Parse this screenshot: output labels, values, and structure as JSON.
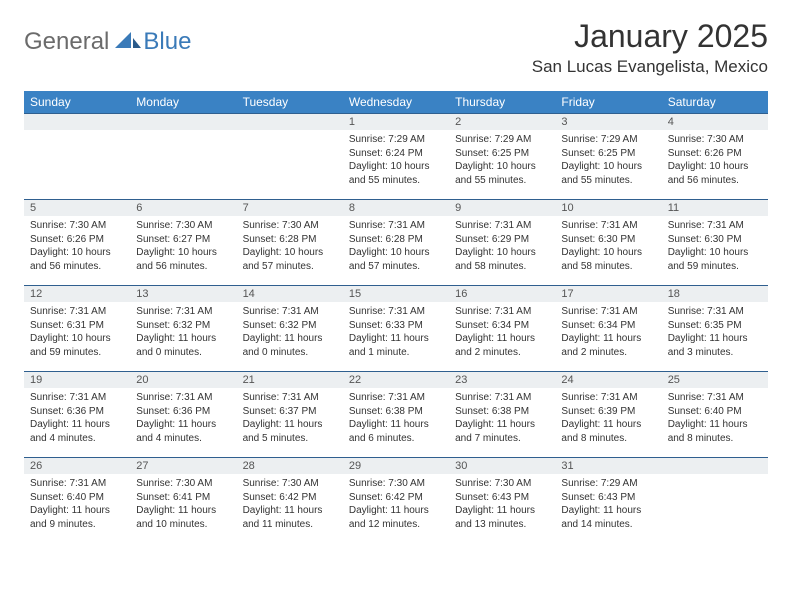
{
  "brand": {
    "part1": "General",
    "part2": "Blue"
  },
  "title": "January 2025",
  "location": "San Lucas Evangelista, Mexico",
  "colors": {
    "header_bg": "#3a82c4",
    "header_fg": "#ffffff",
    "daynum_bg": "#eceff1",
    "daynum_border": "#2f5f8f",
    "brand_gray": "#6b6b6b",
    "brand_blue": "#3a7ab8"
  },
  "weekdays": [
    "Sunday",
    "Monday",
    "Tuesday",
    "Wednesday",
    "Thursday",
    "Friday",
    "Saturday"
  ],
  "weeks": [
    [
      null,
      null,
      null,
      {
        "d": "1",
        "sr": "7:29 AM",
        "ss": "6:24 PM",
        "dl": "10 hours and 55 minutes."
      },
      {
        "d": "2",
        "sr": "7:29 AM",
        "ss": "6:25 PM",
        "dl": "10 hours and 55 minutes."
      },
      {
        "d": "3",
        "sr": "7:29 AM",
        "ss": "6:25 PM",
        "dl": "10 hours and 55 minutes."
      },
      {
        "d": "4",
        "sr": "7:30 AM",
        "ss": "6:26 PM",
        "dl": "10 hours and 56 minutes."
      }
    ],
    [
      {
        "d": "5",
        "sr": "7:30 AM",
        "ss": "6:26 PM",
        "dl": "10 hours and 56 minutes."
      },
      {
        "d": "6",
        "sr": "7:30 AM",
        "ss": "6:27 PM",
        "dl": "10 hours and 56 minutes."
      },
      {
        "d": "7",
        "sr": "7:30 AM",
        "ss": "6:28 PM",
        "dl": "10 hours and 57 minutes."
      },
      {
        "d": "8",
        "sr": "7:31 AM",
        "ss": "6:28 PM",
        "dl": "10 hours and 57 minutes."
      },
      {
        "d": "9",
        "sr": "7:31 AM",
        "ss": "6:29 PM",
        "dl": "10 hours and 58 minutes."
      },
      {
        "d": "10",
        "sr": "7:31 AM",
        "ss": "6:30 PM",
        "dl": "10 hours and 58 minutes."
      },
      {
        "d": "11",
        "sr": "7:31 AM",
        "ss": "6:30 PM",
        "dl": "10 hours and 59 minutes."
      }
    ],
    [
      {
        "d": "12",
        "sr": "7:31 AM",
        "ss": "6:31 PM",
        "dl": "10 hours and 59 minutes."
      },
      {
        "d": "13",
        "sr": "7:31 AM",
        "ss": "6:32 PM",
        "dl": "11 hours and 0 minutes."
      },
      {
        "d": "14",
        "sr": "7:31 AM",
        "ss": "6:32 PM",
        "dl": "11 hours and 0 minutes."
      },
      {
        "d": "15",
        "sr": "7:31 AM",
        "ss": "6:33 PM",
        "dl": "11 hours and 1 minute."
      },
      {
        "d": "16",
        "sr": "7:31 AM",
        "ss": "6:34 PM",
        "dl": "11 hours and 2 minutes."
      },
      {
        "d": "17",
        "sr": "7:31 AM",
        "ss": "6:34 PM",
        "dl": "11 hours and 2 minutes."
      },
      {
        "d": "18",
        "sr": "7:31 AM",
        "ss": "6:35 PM",
        "dl": "11 hours and 3 minutes."
      }
    ],
    [
      {
        "d": "19",
        "sr": "7:31 AM",
        "ss": "6:36 PM",
        "dl": "11 hours and 4 minutes."
      },
      {
        "d": "20",
        "sr": "7:31 AM",
        "ss": "6:36 PM",
        "dl": "11 hours and 4 minutes."
      },
      {
        "d": "21",
        "sr": "7:31 AM",
        "ss": "6:37 PM",
        "dl": "11 hours and 5 minutes."
      },
      {
        "d": "22",
        "sr": "7:31 AM",
        "ss": "6:38 PM",
        "dl": "11 hours and 6 minutes."
      },
      {
        "d": "23",
        "sr": "7:31 AM",
        "ss": "6:38 PM",
        "dl": "11 hours and 7 minutes."
      },
      {
        "d": "24",
        "sr": "7:31 AM",
        "ss": "6:39 PM",
        "dl": "11 hours and 8 minutes."
      },
      {
        "d": "25",
        "sr": "7:31 AM",
        "ss": "6:40 PM",
        "dl": "11 hours and 8 minutes."
      }
    ],
    [
      {
        "d": "26",
        "sr": "7:31 AM",
        "ss": "6:40 PM",
        "dl": "11 hours and 9 minutes."
      },
      {
        "d": "27",
        "sr": "7:30 AM",
        "ss": "6:41 PM",
        "dl": "11 hours and 10 minutes."
      },
      {
        "d": "28",
        "sr": "7:30 AM",
        "ss": "6:42 PM",
        "dl": "11 hours and 11 minutes."
      },
      {
        "d": "29",
        "sr": "7:30 AM",
        "ss": "6:42 PM",
        "dl": "11 hours and 12 minutes."
      },
      {
        "d": "30",
        "sr": "7:30 AM",
        "ss": "6:43 PM",
        "dl": "11 hours and 13 minutes."
      },
      {
        "d": "31",
        "sr": "7:29 AM",
        "ss": "6:43 PM",
        "dl": "11 hours and 14 minutes."
      },
      null
    ]
  ],
  "labels": {
    "sunrise": "Sunrise: ",
    "sunset": "Sunset: ",
    "daylight": "Daylight: "
  }
}
